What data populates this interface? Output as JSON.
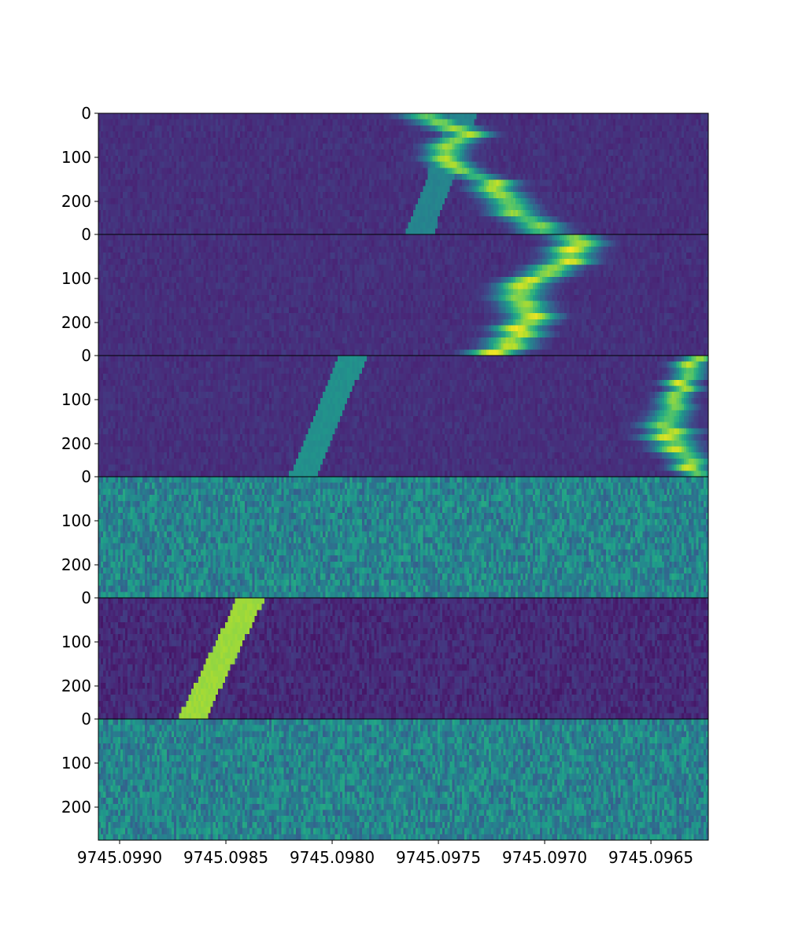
{
  "chart_data": {
    "type": "heatmap",
    "title": "",
    "xlabel": "",
    "ylabel": "",
    "x_range": [
      9745.0991,
      9745.09623
    ],
    "x_axis_reversed": true,
    "x_ticks": [
      9745.099,
      9745.0985,
      9745.098,
      9745.0975,
      9745.097,
      9745.0965
    ],
    "x_tick_labels": [
      "9745.0990",
      "9745.0985",
      "9745.0980",
      "9745.0975",
      "9745.0970",
      "9745.0965"
    ],
    "y_range": [
      275,
      0
    ],
    "y_ticks": [
      0,
      100,
      200
    ],
    "y_tick_labels": [
      "0",
      "100",
      "200"
    ],
    "colormap": "viridis",
    "colormap_stops": [
      "#440154",
      "#482878",
      "#3e4989",
      "#31688e",
      "#26828e",
      "#1f9e89",
      "#35b779",
      "#6ece58",
      "#b5de2b",
      "#fde725"
    ],
    "panels": [
      {
        "background": 0.12,
        "noise": 0.06,
        "bands": [
          {
            "kind": "wide",
            "intensity": 0.9,
            "center": [
              [
                0,
                9745.09758
              ],
              [
                20,
                9745.09748
              ],
              [
                40,
                9745.09737
              ],
              [
                60,
                9745.0974
              ],
              [
                80,
                9745.09745
              ],
              [
                100,
                9745.09745
              ],
              [
                130,
                9745.09738
              ],
              [
                160,
                9745.09725
              ],
              [
                190,
                9745.09717
              ],
              [
                210,
                9745.09715
              ],
              [
                230,
                9745.09712
              ],
              [
                250,
                9745.09705
              ],
              [
                275,
                9745.097
              ]
            ],
            "width": [
              [
                0,
                9745.0003
              ],
              [
                100,
                9745.00025
              ],
              [
                275,
                9745.0003
              ]
            ]
          },
          {
            "kind": "slanted",
            "intensity": 0.45,
            "center": [
              [
                0,
                9745.09738
              ],
              [
                275,
                9745.09759
              ]
            ],
            "width": 9745.000065
          }
        ]
      },
      {
        "background": 0.12,
        "noise": 0.06,
        "bands": [
          {
            "kind": "wide",
            "intensity": 1.0,
            "center": [
              [
                0,
                9745.09686
              ],
              [
                30,
                9745.09684
              ],
              [
                60,
                9745.0969
              ],
              [
                90,
                9745.097
              ],
              [
                120,
                9745.0971
              ],
              [
                150,
                9745.09712
              ],
              [
                180,
                9745.09707
              ],
              [
                210,
                9745.0971
              ],
              [
                240,
                9745.09715
              ],
              [
                275,
                9745.09723
              ]
            ],
            "width": [
              [
                0,
                9745.0003
              ],
              [
                275,
                9745.0003
              ]
            ]
          }
        ]
      },
      {
        "background": 0.12,
        "noise": 0.06,
        "bands": [
          {
            "kind": "slanted",
            "intensity": 0.5,
            "center": [
              [
                0,
                9745.0979
              ],
              [
                275,
                9745.09814
              ]
            ],
            "width": 9745.000065
          },
          {
            "kind": "wide",
            "intensity": 0.95,
            "center": [
              [
                0,
                9745.09628
              ],
              [
                100,
                9745.09638
              ],
              [
                160,
                9745.09643
              ],
              [
                200,
                9745.09638
              ],
              [
                250,
                9745.0963
              ],
              [
                275,
                9745.09628
              ]
            ],
            "width": [
              [
                0,
                9745.0002
              ],
              [
                100,
                9745.0002
              ],
              [
                180,
                9745.0003
              ],
              [
                275,
                9745.0002
              ]
            ]
          }
        ]
      },
      {
        "background": 0.45,
        "noise": 0.15,
        "bands": []
      },
      {
        "background": 0.12,
        "noise": 0.06,
        "bands": [
          {
            "kind": "slanted",
            "intensity": 0.85,
            "center": [
              [
                0,
                9745.09838
              ],
              [
                275,
                9745.09866
              ]
            ],
            "width": 9745.000065
          }
        ]
      },
      {
        "background": 0.45,
        "noise": 0.15,
        "bands": []
      }
    ]
  }
}
